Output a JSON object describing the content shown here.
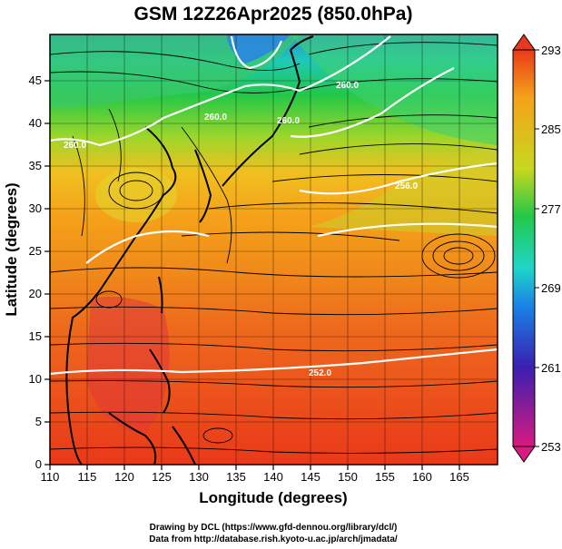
{
  "title": "GSM 12Z26Apr2025 (850.0hPa)",
  "xaxis": {
    "label": "Longitude (degrees)",
    "ticks": [
      "110",
      "115",
      "120",
      "125",
      "130",
      "135",
      "140",
      "145",
      "150",
      "155",
      "160",
      "165"
    ],
    "range": [
      110,
      170
    ]
  },
  "yaxis": {
    "label": "Latitude  (degrees)",
    "ticks": [
      "0",
      "5",
      "10",
      "15",
      "20",
      "25",
      "30",
      "35",
      "40",
      "45"
    ],
    "range": [
      0,
      50
    ]
  },
  "colorbar": {
    "ticks": [
      "293",
      "285",
      "277",
      "269",
      "261",
      "253"
    ],
    "range": [
      253,
      293
    ],
    "colors": [
      "#d91a80",
      "#3a1fb0",
      "#1a7fe6",
      "#1fd6c8",
      "#22c848",
      "#c7d81f",
      "#f5a21a",
      "#e9391a"
    ]
  },
  "contour_labels": [
    "260.0",
    "260.0",
    "260.0",
    "256.0",
    "260.0",
    "252.0"
  ],
  "credits": {
    "line1": "Drawing by DCL (https://www.gfd-dennou.org/library/dcl/)",
    "line2": "Data from http://database.rish.kyoto-u.ac.jp/arch/jmadata/"
  }
}
